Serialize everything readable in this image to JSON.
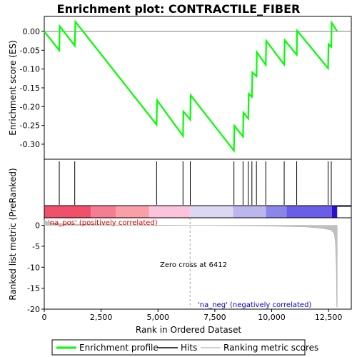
{
  "chart_data": {
    "type": "line",
    "title": "Enrichment plot: CONTRACTILE_FIBER",
    "top_panel": {
      "ylabel": "Enrichment score (ES)",
      "ylim": [
        -0.34,
        0.04
      ],
      "yticks": [
        0.0,
        -0.05,
        -0.1,
        -0.15,
        -0.2,
        -0.25,
        -0.3
      ],
      "ytick_labels": [
        "0.00",
        "-0.05",
        "-0.10",
        "-0.15",
        "-0.20",
        "-0.25",
        "-0.30"
      ],
      "series": [
        {
          "name": "Enrichment profile",
          "color": "#00ff00",
          "x": [
            0,
            660,
            680,
            1340,
            1370,
            4940,
            4960,
            6100,
            6120,
            6420,
            6440,
            8340,
            8360,
            8740,
            8760,
            8970,
            8990,
            9130,
            9150,
            9330,
            9350,
            9740,
            9760,
            10550,
            10570,
            11100,
            11120,
            12480,
            12500,
            12620,
            12640,
            12880
          ],
          "y": [
            0.0,
            -0.05,
            0.014,
            -0.038,
            0.026,
            -0.248,
            -0.183,
            -0.278,
            -0.213,
            -0.235,
            -0.17,
            -0.317,
            -0.251,
            -0.28,
            -0.216,
            -0.232,
            -0.166,
            -0.174,
            -0.109,
            -0.119,
            -0.055,
            -0.089,
            -0.025,
            -0.088,
            -0.023,
            -0.062,
            0.002,
            -0.098,
            -0.034,
            -0.041,
            0.023,
            0.0
          ]
        }
      ]
    },
    "hits": [
      660,
      1340,
      4940,
      6100,
      6420,
      8340,
      8740,
      8970,
      9130,
      9330,
      9740,
      10550,
      11100,
      12480,
      12620
    ],
    "bottom_panel": {
      "ylabel": "Ranked list metric (PreRanked)",
      "xlabel": "Rank in Ordered Dataset",
      "ylim": [
        -20,
        1.8
      ],
      "yticks": [
        0,
        -5,
        -10,
        -15,
        -20
      ],
      "xlim": [
        0,
        13500
      ],
      "xticks": [
        0,
        2500,
        5000,
        7500,
        10000,
        12500
      ],
      "xtick_labels": [
        "0",
        "2,500",
        "5,000",
        "7,500",
        "10,000",
        "12,500"
      ],
      "metric_x": [
        0,
        100,
        300,
        700,
        1500,
        3000,
        5000,
        6412,
        8000,
        10000,
        11500,
        12200,
        12600,
        12750,
        12800,
        12840,
        12860,
        12880
      ],
      "metric_y": [
        1.3,
        0.9,
        0.6,
        0.4,
        0.25,
        0.12,
        0.05,
        0.0,
        -0.08,
        -0.2,
        -0.4,
        -0.7,
        -1.1,
        -2.0,
        -4.0,
        -10.0,
        -19.5,
        -19.5
      ],
      "fill_color": "#c0c0c0",
      "zero_cross_label": "Zero cross at 6412",
      "zero_cross_x": 6412,
      "pos_label": "'na_pos' (positively correlated)",
      "neg_label": "'na_neg' (negatively correlated)",
      "pos_color": "#dd0000",
      "neg_color": "#0000cc"
    },
    "color_bar": {
      "segments": [
        {
          "x0": 0,
          "x1": 2050,
          "color": "#f0506a"
        },
        {
          "x0": 2050,
          "x1": 3150,
          "color": "#f57d92"
        },
        {
          "x0": 3150,
          "x1": 4600,
          "color": "#fa9ea8"
        },
        {
          "x0": 4600,
          "x1": 6412,
          "color": "#fcc4dc"
        },
        {
          "x0": 6412,
          "x1": 8300,
          "color": "#dcd8f4"
        },
        {
          "x0": 8300,
          "x1": 9750,
          "color": "#bcb6ee"
        },
        {
          "x0": 9750,
          "x1": 10650,
          "color": "#8c86ec"
        },
        {
          "x0": 10650,
          "x1": 12650,
          "color": "#6a5ee6"
        },
        {
          "x0": 12650,
          "x1": 12880,
          "color": "#2a10c8"
        }
      ]
    },
    "legend": [
      {
        "label": "Enrichment profile",
        "color": "#00ff00"
      },
      {
        "label": "Hits",
        "color": "#000000"
      },
      {
        "label": "Ranking metric scores",
        "color": "#c0c0c0"
      }
    ]
  }
}
